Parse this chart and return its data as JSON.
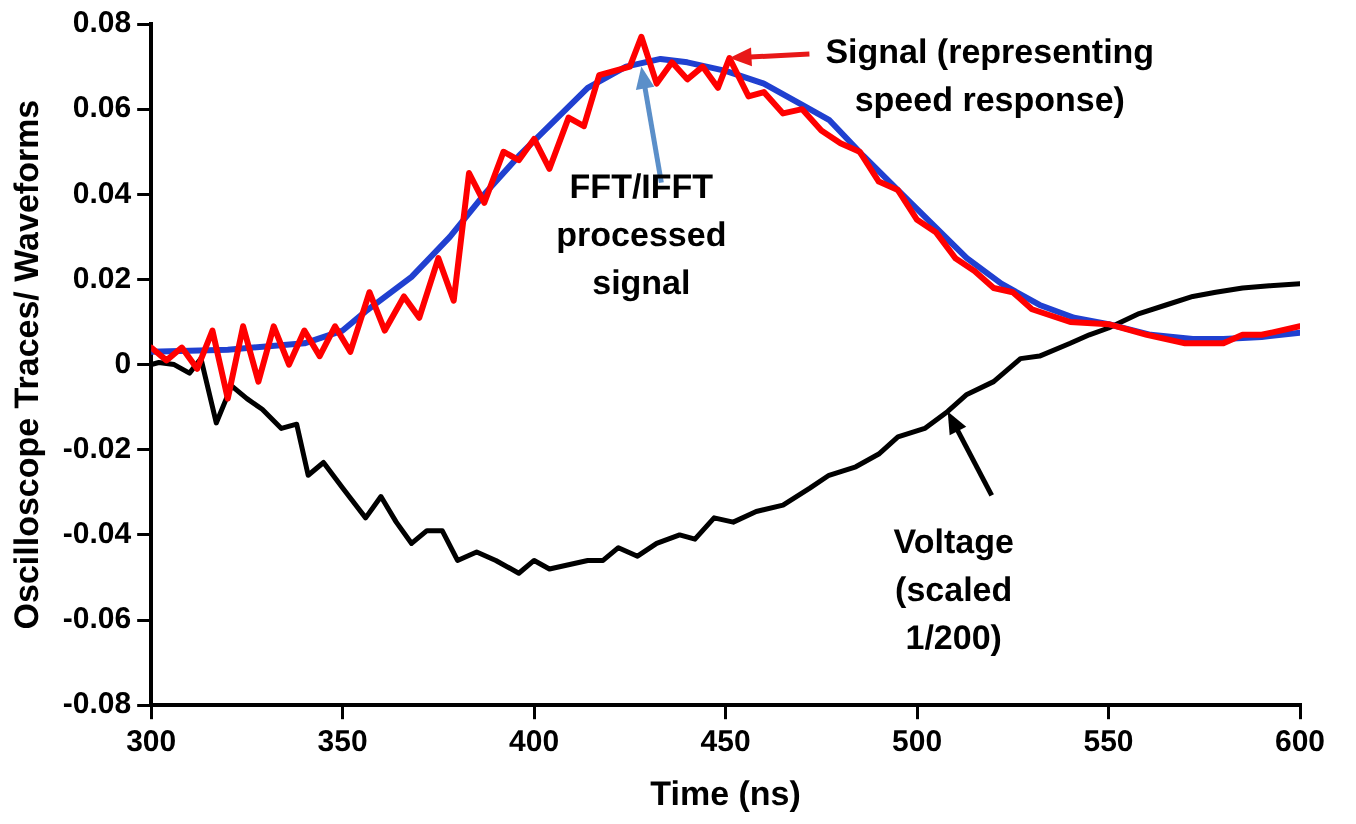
{
  "chart_data": {
    "type": "line",
    "xlabel": "Time (ns)",
    "ylabel": "Oscilloscope Traces/ Waveforms",
    "xlim": [
      300,
      600
    ],
    "xticks": [
      300,
      350,
      400,
      450,
      500,
      550,
      600
    ],
    "ylim": [
      -0.08,
      0.08
    ],
    "yticks": [
      -0.08,
      -0.06,
      -0.04,
      -0.02,
      0,
      0.02,
      0.04,
      0.06,
      0.08
    ],
    "grid": false,
    "legend": false,
    "marker": "none",
    "line_style": "solid",
    "series": [
      {
        "color": "#ff0000",
        "x": [
          300,
          304,
          308,
          312,
          316,
          320,
          324,
          328,
          332,
          336,
          340,
          344,
          348,
          352,
          357,
          361,
          366,
          370,
          375,
          379,
          383,
          387,
          392,
          396,
          400,
          404,
          409,
          413,
          417,
          421,
          425,
          428,
          432,
          436,
          440,
          444,
          448,
          451,
          456,
          460,
          465,
          470,
          475,
          480,
          485,
          490,
          495,
          500,
          505,
          510,
          515,
          520,
          525,
          530,
          540,
          550,
          560,
          570,
          580,
          585,
          590,
          600
        ],
        "values": [
          0.004,
          0.001,
          0.004,
          -0.001,
          0.008,
          -0.008,
          0.009,
          -0.004,
          0.009,
          0.0,
          0.008,
          0.002,
          0.009,
          0.003,
          0.017,
          0.008,
          0.016,
          0.011,
          0.025,
          0.015,
          0.045,
          0.038,
          0.05,
          0.048,
          0.053,
          0.046,
          0.058,
          0.056,
          0.068,
          0.069,
          0.07,
          0.077,
          0.066,
          0.071,
          0.067,
          0.07,
          0.065,
          0.072,
          0.063,
          0.064,
          0.059,
          0.06,
          0.055,
          0.052,
          0.05,
          0.043,
          0.041,
          0.034,
          0.031,
          0.025,
          0.022,
          0.018,
          0.017,
          0.013,
          0.01,
          0.0095,
          0.007,
          0.005,
          0.005,
          0.007,
          0.007,
          0.009
        ]
      },
      {
        "color": "#2040d0",
        "x": [
          300,
          320,
          340,
          350,
          356,
          368,
          378,
          387,
          396,
          405,
          414,
          424,
          433,
          440,
          450,
          460,
          470,
          477,
          486,
          495,
          504,
          513,
          522,
          532,
          541,
          550,
          561,
          572,
          580,
          590,
          600
        ],
        "values": [
          0.003,
          0.0035,
          0.005,
          0.008,
          0.0125,
          0.0206,
          0.03,
          0.04,
          0.049,
          0.057,
          0.065,
          0.07,
          0.0718,
          0.071,
          0.069,
          0.066,
          0.061,
          0.0575,
          0.049,
          0.041,
          0.033,
          0.025,
          0.019,
          0.014,
          0.011,
          0.0095,
          0.007,
          0.006,
          0.006,
          0.0065,
          0.0075
        ]
      },
      {
        "color": "#000000",
        "x": [
          300,
          302,
          306,
          310,
          313,
          317,
          321,
          325,
          329,
          334,
          338,
          341,
          345,
          350,
          356,
          360,
          364,
          368,
          372,
          376,
          380,
          385,
          390,
          396,
          400,
          404,
          409,
          414,
          418,
          422,
          427,
          432,
          438,
          442,
          447,
          452,
          458,
          465,
          472,
          477,
          484,
          490,
          495,
          502,
          508,
          513,
          520,
          527,
          532,
          540,
          545,
          550,
          558,
          565,
          572,
          578,
          585,
          592,
          600
        ],
        "values": [
          0,
          0.0005,
          0,
          -0.002,
          0.0014,
          -0.0137,
          -0.005,
          -0.008,
          -0.0105,
          -0.015,
          -0.014,
          -0.026,
          -0.023,
          -0.029,
          -0.036,
          -0.031,
          -0.037,
          -0.042,
          -0.039,
          -0.039,
          -0.046,
          -0.044,
          -0.046,
          -0.049,
          -0.046,
          -0.048,
          -0.047,
          -0.046,
          -0.046,
          -0.043,
          -0.045,
          -0.042,
          -0.04,
          -0.041,
          -0.036,
          -0.037,
          -0.0345,
          -0.033,
          -0.029,
          -0.026,
          -0.024,
          -0.021,
          -0.017,
          -0.015,
          -0.011,
          -0.007,
          -0.004,
          0.0014,
          0.002,
          0.005,
          0.007,
          0.0086,
          0.012,
          0.014,
          0.016,
          0.017,
          0.018,
          0.0185,
          0.019
        ]
      }
    ],
    "annotations": [
      {
        "text": "Signal (representing\nspeed response)",
        "x": 451,
        "y": 0.072
      },
      {
        "text": "FFT/IFFT\nprocessed\nsignal",
        "x": 428,
        "y": 0.07
      },
      {
        "text": "Voltage\n(scaled\n1/200)",
        "x": 508,
        "y": -0.011
      }
    ]
  }
}
